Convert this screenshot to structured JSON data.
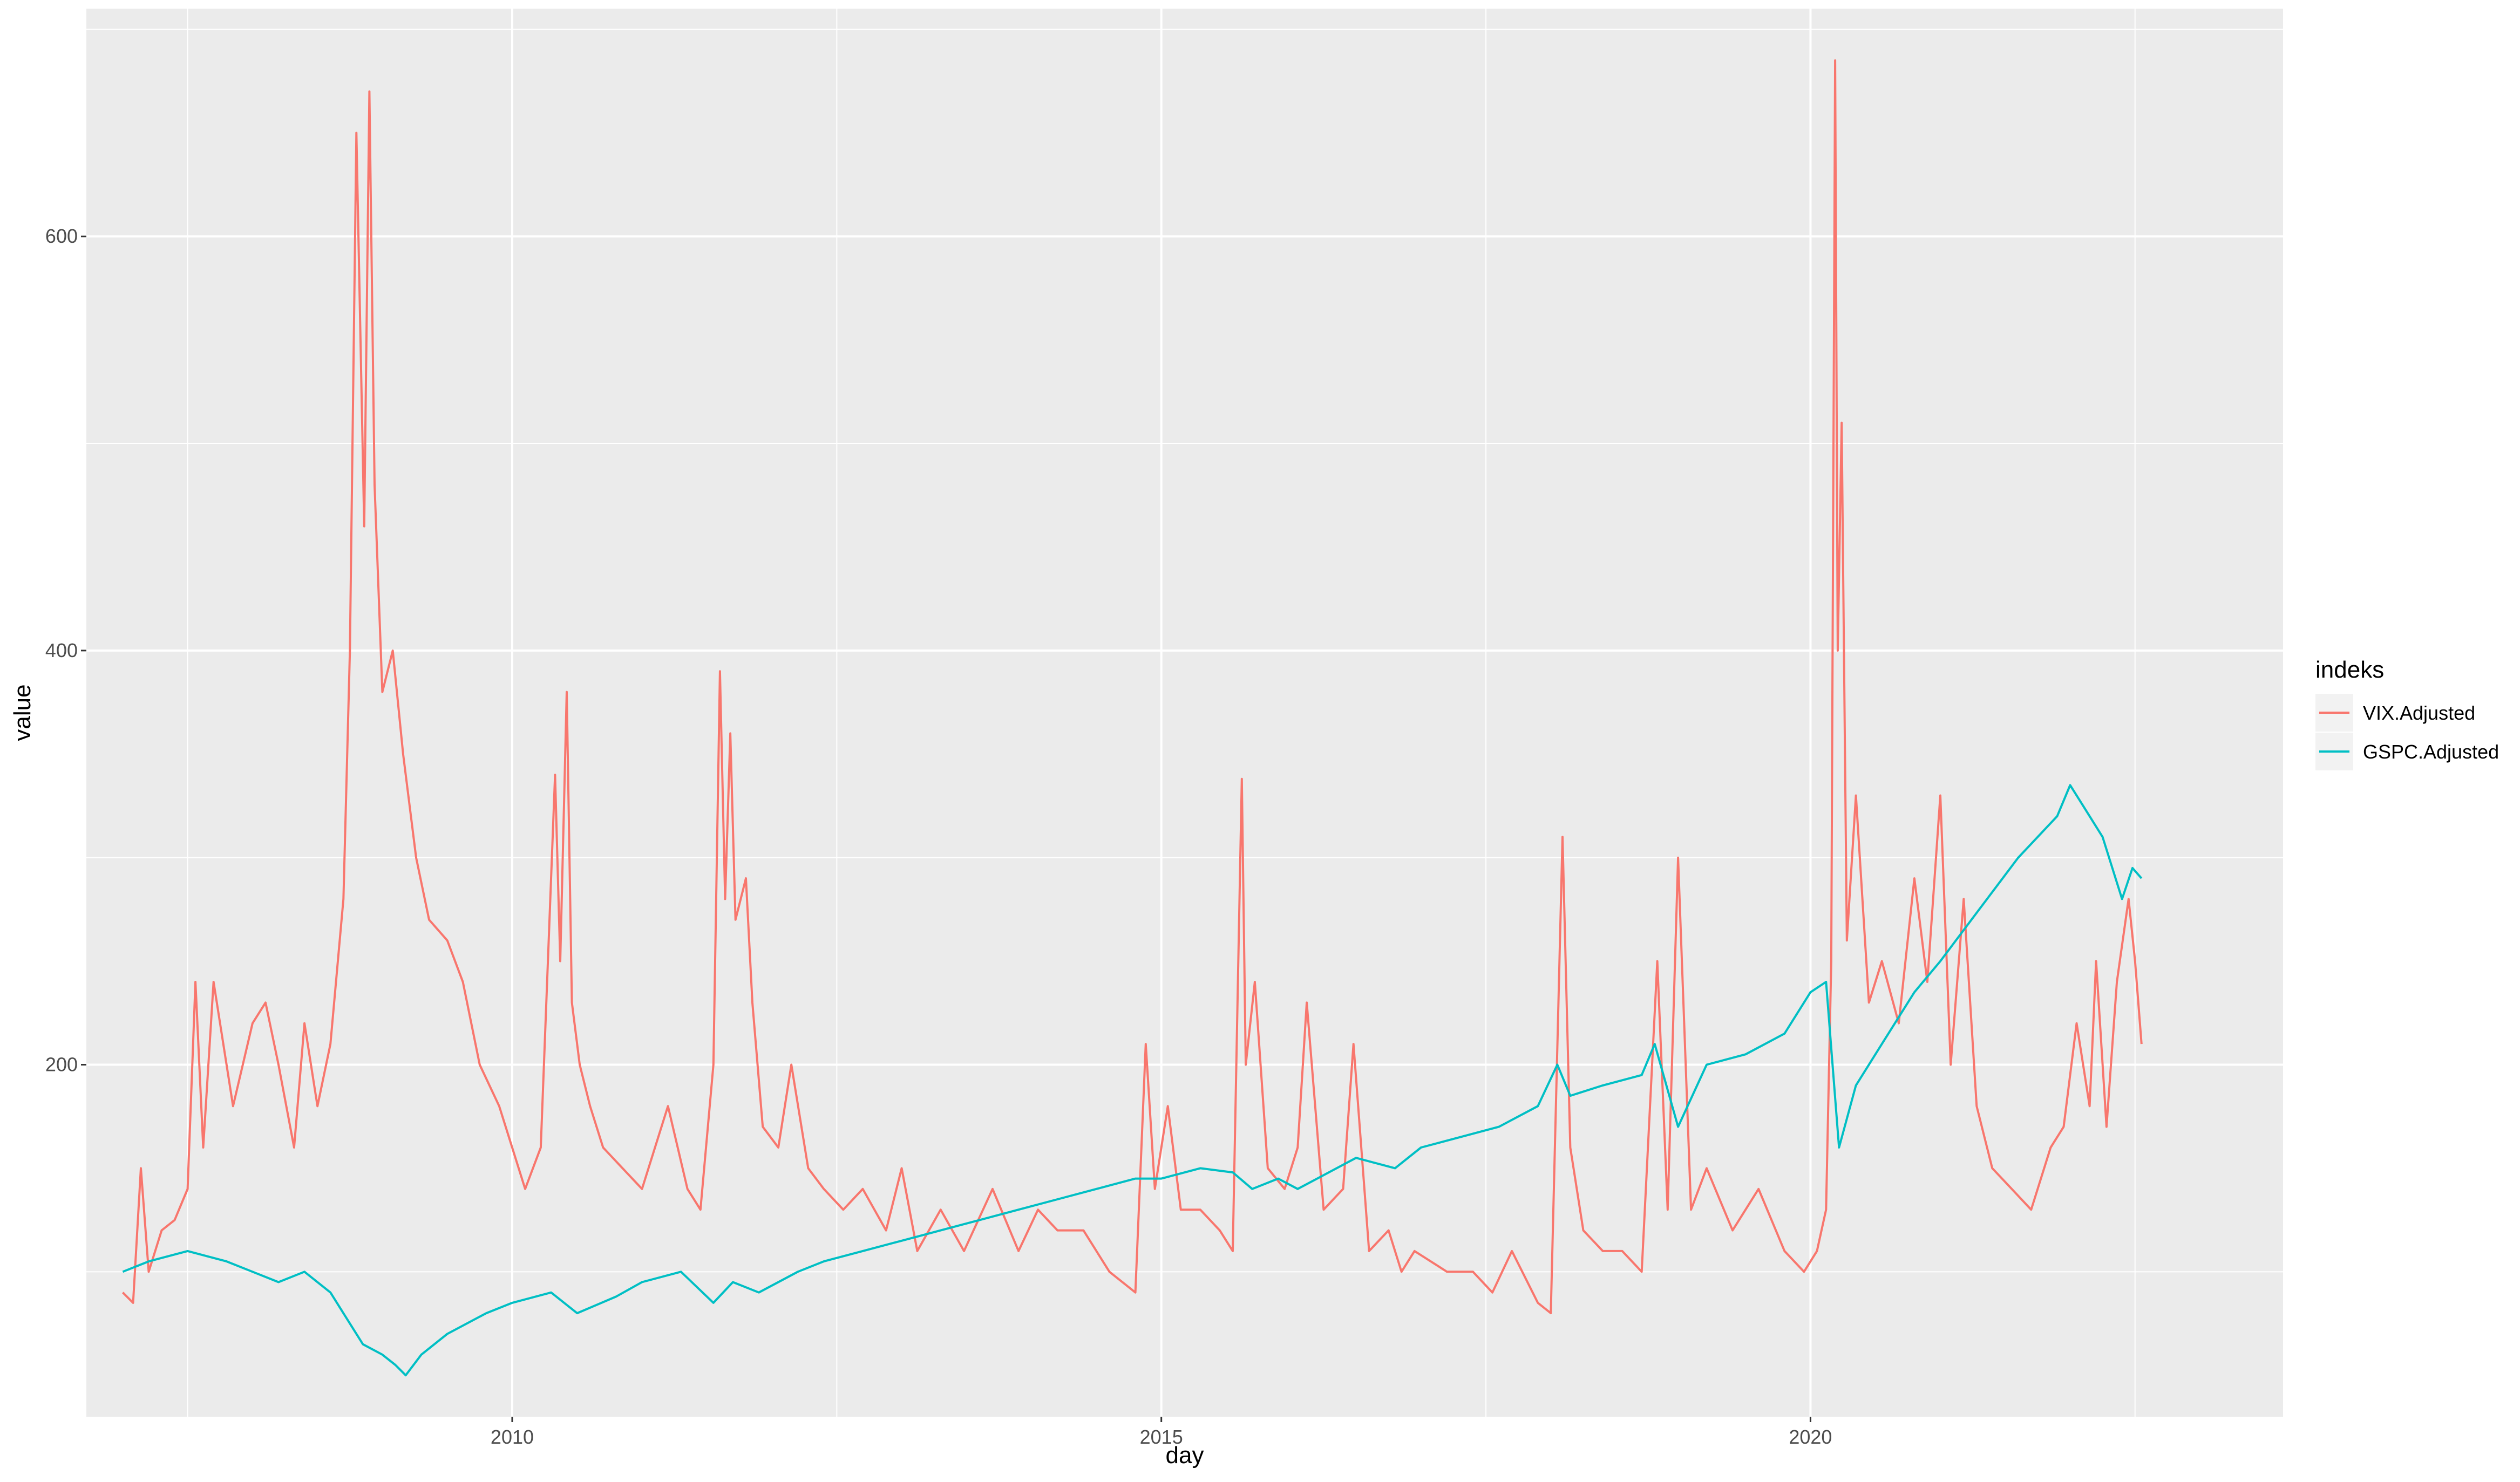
{
  "chart_data": {
    "type": "line",
    "title": "",
    "xlabel": "day",
    "ylabel": "value",
    "x_ticks": [
      "2010",
      "2015",
      "2020"
    ],
    "y_ticks": [
      "200",
      "400",
      "600"
    ],
    "xlim": [
      2006.72,
      2023.64
    ],
    "ylim": [
      30,
      710
    ],
    "grid": true,
    "legend": {
      "title": "indeks",
      "placement": "right"
    },
    "series": [
      {
        "name": "VIX.Adjusted",
        "color": "#F8766D",
        "x": [
          2007.0,
          2007.08,
          2007.14,
          2007.2,
          2007.3,
          2007.4,
          2007.5,
          2007.56,
          2007.62,
          2007.7,
          2007.85,
          2008.0,
          2008.1,
          2008.2,
          2008.32,
          2008.4,
          2008.5,
          2008.6,
          2008.7,
          2008.75,
          2008.8,
          2008.86,
          2008.9,
          2008.94,
          2009.0,
          2009.08,
          2009.16,
          2009.26,
          2009.36,
          2009.5,
          2009.62,
          2009.75,
          2009.9,
          2010.1,
          2010.22,
          2010.33,
          2010.37,
          2010.42,
          2010.46,
          2010.52,
          2010.6,
          2010.7,
          2010.85,
          2011.0,
          2011.2,
          2011.35,
          2011.45,
          2011.55,
          2011.6,
          2011.64,
          2011.68,
          2011.72,
          2011.8,
          2011.85,
          2011.93,
          2012.05,
          2012.15,
          2012.28,
          2012.4,
          2012.55,
          2012.7,
          2012.88,
          2013.0,
          2013.12,
          2013.3,
          2013.48,
          2013.7,
          2013.9,
          2014.05,
          2014.2,
          2014.4,
          2014.6,
          2014.8,
          2014.88,
          2014.95,
          2015.05,
          2015.15,
          2015.3,
          2015.45,
          2015.55,
          2015.62,
          2015.65,
          2015.72,
          2015.82,
          2015.95,
          2016.05,
          2016.12,
          2016.25,
          2016.4,
          2016.48,
          2016.6,
          2016.75,
          2016.85,
          2016.95,
          2017.2,
          2017.4,
          2017.55,
          2017.7,
          2017.9,
          2018.0,
          2018.09,
          2018.15,
          2018.25,
          2018.4,
          2018.55,
          2018.7,
          2018.82,
          2018.9,
          2018.98,
          2019.08,
          2019.2,
          2019.4,
          2019.6,
          2019.8,
          2019.95,
          2020.05,
          2020.12,
          2020.16,
          2020.19,
          2020.21,
          2020.24,
          2020.28,
          2020.35,
          2020.45,
          2020.55,
          2020.68,
          2020.8,
          2020.9,
          2021.0,
          2021.08,
          2021.18,
          2021.28,
          2021.4,
          2021.55,
          2021.7,
          2021.85,
          2021.95,
          2022.05,
          2022.15,
          2022.2,
          2022.28,
          2022.36,
          2022.45,
          2022.5,
          2022.55
        ],
        "values": [
          90,
          85,
          150,
          100,
          120,
          125,
          140,
          240,
          160,
          240,
          180,
          220,
          230,
          200,
          160,
          220,
          180,
          210,
          280,
          400,
          650,
          460,
          670,
          480,
          380,
          400,
          350,
          300,
          270,
          260,
          240,
          200,
          180,
          140,
          160,
          340,
          250,
          380,
          230,
          200,
          180,
          160,
          150,
          140,
          180,
          140,
          130,
          200,
          390,
          280,
          360,
          270,
          290,
          230,
          170,
          160,
          200,
          150,
          140,
          130,
          140,
          120,
          150,
          110,
          130,
          110,
          140,
          110,
          130,
          120,
          120,
          100,
          90,
          210,
          140,
          180,
          130,
          130,
          120,
          110,
          338,
          200,
          240,
          150,
          140,
          160,
          230,
          130,
          140,
          210,
          110,
          120,
          100,
          110,
          100,
          100,
          90,
          110,
          85,
          80,
          310,
          160,
          120,
          110,
          110,
          100,
          250,
          130,
          300,
          130,
          150,
          120,
          140,
          110,
          100,
          110,
          130,
          250,
          685,
          400,
          510,
          260,
          330,
          230,
          250,
          220,
          290,
          240,
          330,
          200,
          280,
          180,
          150,
          140,
          130,
          160,
          170,
          220,
          180,
          250,
          170,
          240,
          280,
          250,
          210
        ]
      },
      {
        "name": "GSPC.Adjusted",
        "color": "#00BFC4",
        "x": [
          2007.0,
          2007.2,
          2007.5,
          2007.8,
          2008.0,
          2008.2,
          2008.4,
          2008.6,
          2008.75,
          2008.85,
          2009.0,
          2009.1,
          2009.18,
          2009.3,
          2009.5,
          2009.8,
          2010.0,
          2010.3,
          2010.5,
          2010.8,
          2011.0,
          2011.3,
          2011.55,
          2011.7,
          2011.9,
          2012.2,
          2012.4,
          2012.7,
          2013.0,
          2013.3,
          2013.6,
          2013.9,
          2014.2,
          2014.5,
          2014.8,
          2015.0,
          2015.3,
          2015.55,
          2015.7,
          2015.9,
          2016.05,
          2016.2,
          2016.5,
          2016.8,
          2017.0,
          2017.3,
          2017.6,
          2017.9,
          2018.05,
          2018.15,
          2018.4,
          2018.7,
          2018.8,
          2018.98,
          2019.2,
          2019.5,
          2019.8,
          2020.0,
          2020.12,
          2020.22,
          2020.35,
          2020.55,
          2020.8,
          2021.0,
          2021.3,
          2021.6,
          2021.9,
          2022.0,
          2022.1,
          2022.25,
          2022.4,
          2022.48,
          2022.55
        ],
        "values": [
          100,
          105,
          110,
          105,
          100,
          95,
          100,
          90,
          75,
          65,
          60,
          55,
          50,
          60,
          70,
          80,
          85,
          90,
          80,
          88,
          95,
          100,
          85,
          95,
          90,
          100,
          105,
          110,
          115,
          120,
          125,
          130,
          135,
          140,
          145,
          145,
          150,
          148,
          140,
          145,
          140,
          145,
          155,
          150,
          160,
          165,
          170,
          180,
          200,
          185,
          190,
          195,
          210,
          170,
          200,
          205,
          215,
          235,
          240,
          160,
          190,
          210,
          235,
          250,
          275,
          300,
          320,
          335,
          325,
          310,
          280,
          295,
          290
        ]
      }
    ]
  }
}
